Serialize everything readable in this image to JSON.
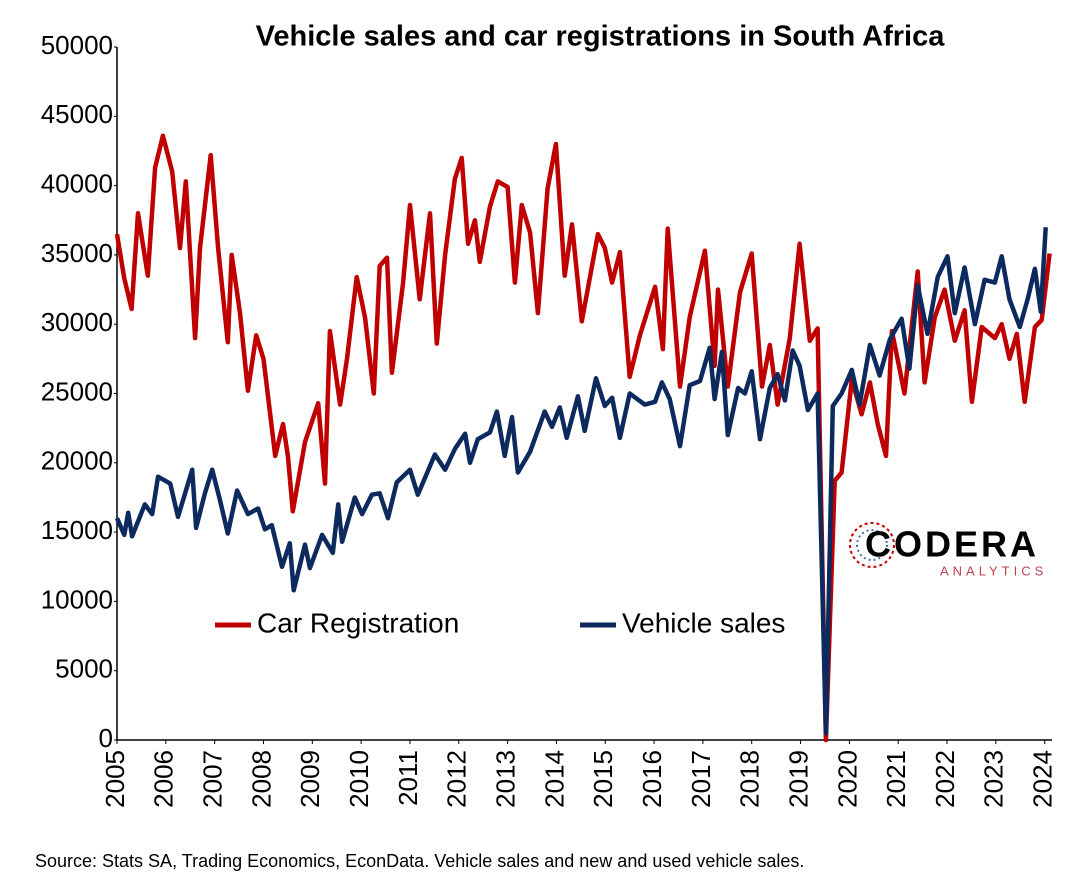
{
  "chart_data": {
    "type": "line",
    "title": "Vehicle sales and car registrations in South Africa",
    "source": "Source: Stats SA, Trading Economics, EconData. Vehicle sales and new and used vehicle sales.",
    "logo": {
      "name": "CODERA",
      "tagline": "ANALYTICS"
    },
    "xlim": [
      2005,
      2024.15
    ],
    "xticks": [
      2005,
      2006,
      2007,
      2008,
      2009,
      2010,
      2011,
      2012,
      2013,
      2014,
      2015,
      2016,
      2017,
      2018,
      2019,
      2020,
      2021,
      2022,
      2023,
      2024
    ],
    "ylim": [
      0,
      50000
    ],
    "yticks": [
      0,
      5000,
      10000,
      15000,
      20000,
      25000,
      30000,
      35000,
      40000,
      45000,
      50000
    ],
    "grid": false,
    "legend": "center-left",
    "series": [
      {
        "name": "Car Registration",
        "color": "#c00000",
        "x": [
          2005.0,
          2005.15,
          2005.3,
          2005.43,
          2005.63,
          2005.78,
          2005.94,
          2006.13,
          2006.29,
          2006.41,
          2006.6,
          2006.7,
          2006.92,
          2007.07,
          2007.27,
          2007.35,
          2007.52,
          2007.68,
          2007.85,
          2008.0,
          2008.24,
          2008.4,
          2008.5,
          2008.6,
          2008.85,
          2009.12,
          2009.26,
          2009.36,
          2009.57,
          2009.71,
          2009.91,
          2010.08,
          2010.26,
          2010.38,
          2010.53,
          2010.63,
          2010.86,
          2011.0,
          2011.2,
          2011.41,
          2011.55,
          2011.72,
          2011.92,
          2012.06,
          2012.19,
          2012.33,
          2012.43,
          2012.64,
          2012.8,
          2013.0,
          2013.15,
          2013.29,
          2013.46,
          2013.62,
          2013.82,
          2013.99,
          2014.17,
          2014.32,
          2014.52,
          2014.85,
          2014.99,
          2015.14,
          2015.3,
          2015.5,
          2015.71,
          2016.02,
          2016.18,
          2016.28,
          2016.53,
          2016.73,
          2017.04,
          2017.24,
          2017.31,
          2017.51,
          2017.76,
          2018.0,
          2018.21,
          2018.37,
          2018.53,
          2018.78,
          2018.98,
          2019.19,
          2019.35,
          2019.52,
          2019.7,
          2019.84,
          2020.05,
          2020.25,
          2020.42,
          2020.58,
          2020.75,
          2020.87,
          2021.13,
          2021.4,
          2021.54,
          2021.75,
          2021.95,
          2022.16,
          2022.36,
          2022.51,
          2022.71,
          2022.98,
          2023.12,
          2023.28,
          2023.43,
          2023.59,
          2023.8,
          2023.94,
          2024.1
        ],
        "values": [
          36500,
          33300,
          31100,
          38000,
          33500,
          41300,
          43600,
          41000,
          35500,
          40300,
          29000,
          35500,
          42200,
          35500,
          28700,
          35000,
          30800,
          25200,
          29200,
          27500,
          20500,
          22800,
          20500,
          16500,
          21500,
          24300,
          18500,
          29500,
          24200,
          27500,
          33400,
          30500,
          25000,
          34200,
          34800,
          26500,
          33000,
          38600,
          31800,
          38000,
          28600,
          35000,
          40500,
          42000,
          35800,
          37500,
          34500,
          38500,
          40300,
          39900,
          33000,
          38600,
          36600,
          30800,
          39800,
          43000,
          33500,
          37200,
          30200,
          36500,
          35500,
          33000,
          35200,
          26200,
          29200,
          32700,
          28200,
          36900,
          25500,
          30500,
          35300,
          27000,
          32500,
          25500,
          32300,
          35100,
          25500,
          28500,
          24200,
          29000,
          35800,
          28800,
          29700,
          0,
          18700,
          19300,
          26000,
          23500,
          25800,
          22800,
          20500,
          29500,
          25000,
          33800,
          25800,
          30500,
          32500,
          28800,
          31000,
          24400,
          29800,
          29000,
          30000,
          27500,
          29300,
          24400,
          29800,
          30300,
          35100
        ]
      },
      {
        "name": "Vehicle sales",
        "color": "#0d2a5e",
        "x": [
          2005.0,
          2005.15,
          2005.23,
          2005.31,
          2005.57,
          2005.72,
          2005.84,
          2006.09,
          2006.25,
          2006.54,
          2006.62,
          2006.8,
          2006.95,
          2007.11,
          2007.27,
          2007.46,
          2007.68,
          2007.89,
          2008.03,
          2008.17,
          2008.38,
          2008.54,
          2008.62,
          2008.85,
          2008.95,
          2009.2,
          2009.42,
          2009.53,
          2009.61,
          2009.87,
          2010.02,
          2010.22,
          2010.38,
          2010.55,
          2010.73,
          2011.0,
          2011.16,
          2011.51,
          2011.72,
          2011.92,
          2012.13,
          2012.23,
          2012.39,
          2012.64,
          2012.78,
          2012.94,
          2013.09,
          2013.21,
          2013.46,
          2013.76,
          2013.91,
          2014.07,
          2014.21,
          2014.44,
          2014.58,
          2014.81,
          2014.99,
          2015.14,
          2015.3,
          2015.5,
          2015.81,
          2016.02,
          2016.16,
          2016.32,
          2016.53,
          2016.73,
          2016.94,
          2017.14,
          2017.24,
          2017.39,
          2017.51,
          2017.72,
          2017.86,
          2018.0,
          2018.17,
          2018.37,
          2018.53,
          2018.68,
          2018.84,
          2018.98,
          2019.15,
          2019.35,
          2019.52,
          2019.66,
          2019.84,
          2020.05,
          2020.21,
          2020.42,
          2020.62,
          2020.83,
          2021.07,
          2021.23,
          2021.4,
          2021.6,
          2021.81,
          2022.01,
          2022.16,
          2022.36,
          2022.57,
          2022.77,
          2022.98,
          2023.12,
          2023.28,
          2023.49,
          2023.65,
          2023.8,
          2023.92,
          2024.02
        ],
        "values": [
          16000,
          14800,
          16400,
          14700,
          17000,
          16300,
          19000,
          18500,
          16100,
          19500,
          15300,
          17800,
          19500,
          17300,
          14900,
          18000,
          16300,
          16700,
          15200,
          15500,
          12500,
          14200,
          10800,
          14100,
          12400,
          14800,
          13500,
          17000,
          14300,
          17500,
          16300,
          17700,
          17800,
          16000,
          18600,
          19500,
          17700,
          20600,
          19500,
          21000,
          22100,
          20000,
          21700,
          22200,
          23700,
          20500,
          23300,
          19300,
          20800,
          23700,
          22600,
          24000,
          21800,
          24800,
          22300,
          26100,
          24100,
          24700,
          21800,
          25000,
          24200,
          24400,
          25800,
          24600,
          21200,
          25600,
          25900,
          28300,
          24600,
          28000,
          22000,
          25400,
          25000,
          26600,
          21700,
          25400,
          26400,
          24500,
          28100,
          27000,
          23800,
          25000,
          500,
          24100,
          25000,
          26700,
          24200,
          28500,
          26300,
          28900,
          30400,
          26800,
          32800,
          29300,
          33400,
          34900,
          30800,
          34100,
          30000,
          33200,
          33000,
          34900,
          31800,
          29800,
          31800,
          34000,
          30900,
          37000
        ]
      }
    ]
  }
}
